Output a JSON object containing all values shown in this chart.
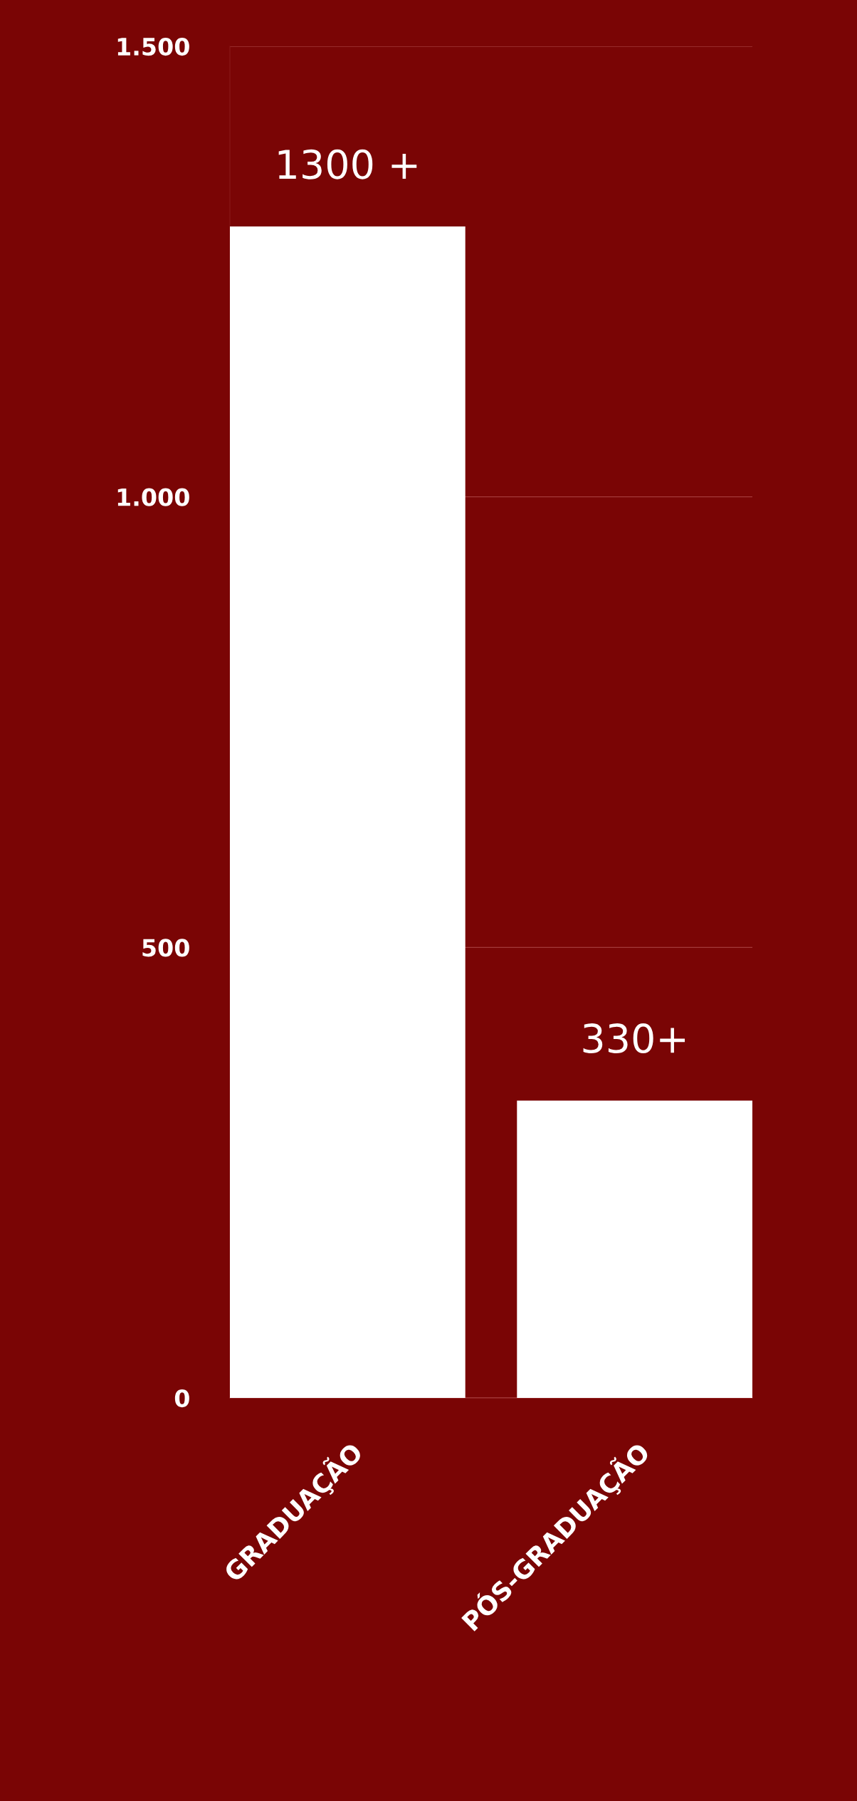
{
  "chart_data": {
    "type": "bar",
    "categories": [
      "GRADUAÇÃO",
      "PÓS-GRADUAÇÃO"
    ],
    "values": [
      1300,
      330
    ],
    "value_labels": [
      "1300 +",
      "330+"
    ],
    "color": "#ffffff",
    "ylim": [
      0,
      1500
    ],
    "yticks": [
      0,
      {
        "value": 500,
        "label": "500"
      },
      {
        "value": 1000,
        "label": "1.000"
      },
      {
        "value": 1500,
        "label": "1.500"
      }
    ],
    "grid": "y"
  }
}
